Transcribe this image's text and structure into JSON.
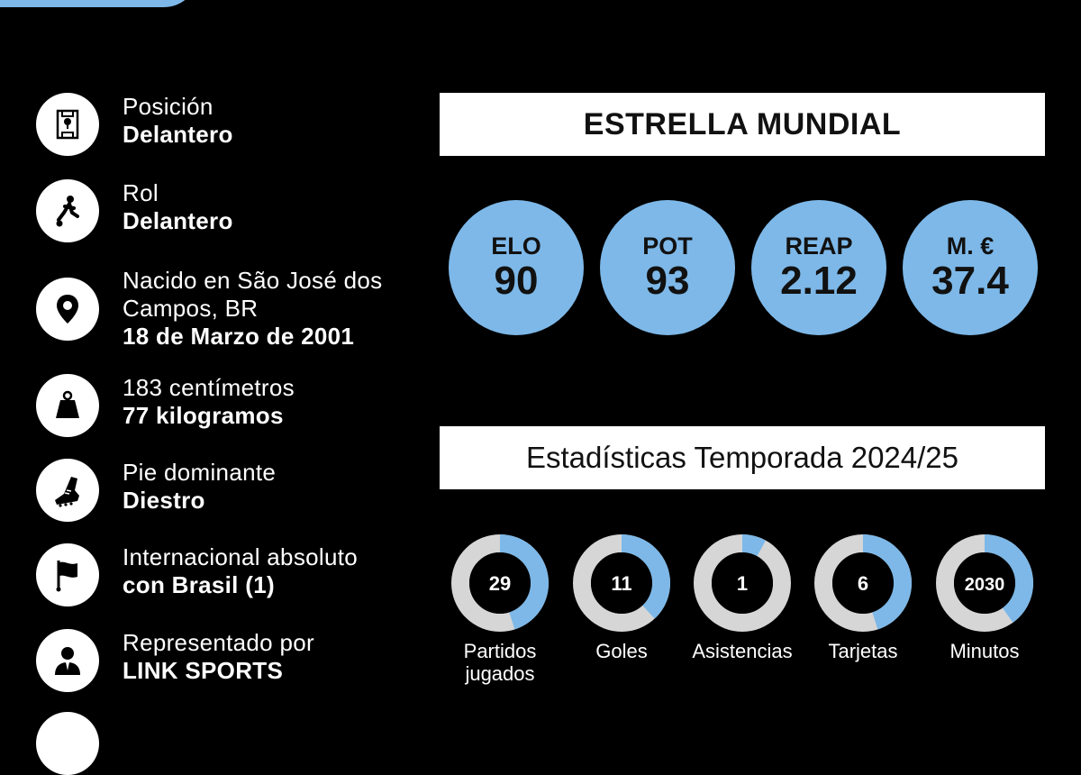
{
  "profile": {
    "items": [
      {
        "icon": "pitch-position-icon",
        "lines": [
          {
            "t": "Posición",
            "b": false
          },
          {
            "t": "Delantero",
            "b": true
          }
        ]
      },
      {
        "icon": "player-kick-icon",
        "lines": [
          {
            "t": "Rol",
            "b": false
          },
          {
            "t": "Delantero",
            "b": true
          }
        ]
      },
      {
        "icon": "location-pin-icon",
        "lines": [
          {
            "t": "Nacido en São José dos",
            "b": false
          },
          {
            "t": "Campos, BR",
            "b": false
          },
          {
            "t": "18 de Marzo de 2001",
            "b": true
          }
        ]
      },
      {
        "icon": "weight-icon",
        "lines": [
          {
            "t": "183 centímetros",
            "b": false
          },
          {
            "t": "77 kilogramos",
            "b": true
          }
        ]
      },
      {
        "icon": "football-boot-icon",
        "lines": [
          {
            "t": "Pie dominante",
            "b": false
          },
          {
            "t": "Diestro",
            "b": true
          }
        ]
      },
      {
        "icon": "flag-icon",
        "lines": [
          {
            "t": "Internacional absoluto",
            "b": false
          },
          {
            "t": "con Brasil (1)",
            "b": true
          }
        ]
      },
      {
        "icon": "agent-icon",
        "lines": [
          {
            "t": "Representado por",
            "b": false
          },
          {
            "t": "LINK SPORTS",
            "b": true
          }
        ]
      }
    ]
  },
  "category_banner": "ESTRELLA MUNDIAL",
  "ratings": [
    {
      "label": "ELO",
      "value": "90"
    },
    {
      "label": "POT",
      "value": "93"
    },
    {
      "label": "REAP",
      "value": "2.12"
    },
    {
      "label": "M. €",
      "value": "37.4"
    }
  ],
  "season_banner": "Estadísticas Temporada 2024/25",
  "stats": [
    {
      "value": "29",
      "label_lines": [
        "Partidos",
        "jugados"
      ],
      "fill": 0.45
    },
    {
      "value": "11",
      "label_lines": [
        "Goles"
      ],
      "fill": 0.38
    },
    {
      "value": "1",
      "label_lines": [
        "Asistencias"
      ],
      "fill": 0.08
    },
    {
      "value": "6",
      "label_lines": [
        "Tarjetas"
      ],
      "fill": 0.45
    },
    {
      "value": "2030",
      "label_lines": [
        "Minutos"
      ],
      "fill": 0.4
    }
  ],
  "colors": {
    "accent": "#7db8e8",
    "ring_track": "#d6d6d6",
    "background": "#000000"
  }
}
